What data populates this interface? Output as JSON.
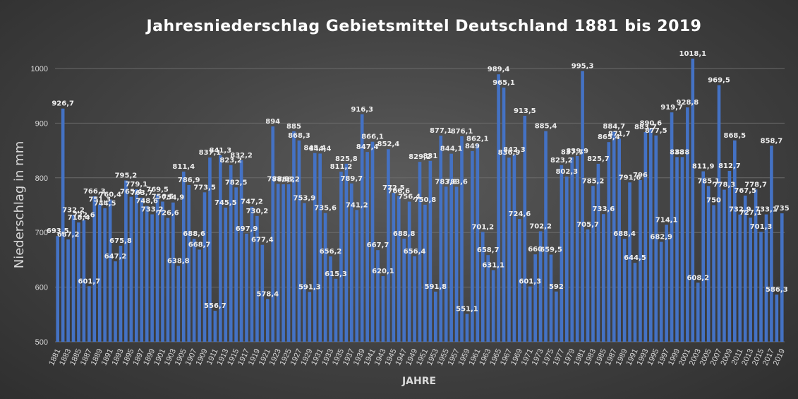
{
  "chart_data": {
    "type": "bar",
    "title": "Jahresniederschlag Gebietsmittel Deutschland 1881 bis 2019",
    "xlabel": "JAHRE",
    "ylabel": "Niederschlag in mm",
    "ylim": [
      500,
      1050
    ],
    "yticks": [
      500,
      600,
      700,
      800,
      900,
      1000
    ],
    "grid": true,
    "legend": "none",
    "bar_color": "#4472c4",
    "categories": [
      1881,
      1882,
      1883,
      1884,
      1885,
      1886,
      1887,
      1888,
      1889,
      1890,
      1891,
      1892,
      1893,
      1894,
      1895,
      1896,
      1897,
      1898,
      1899,
      1900,
      1901,
      1902,
      1903,
      1904,
      1905,
      1906,
      1907,
      1908,
      1909,
      1910,
      1911,
      1912,
      1913,
      1914,
      1915,
      1916,
      1917,
      1918,
      1919,
      1920,
      1921,
      1922,
      1923,
      1924,
      1925,
      1926,
      1927,
      1928,
      1929,
      1930,
      1931,
      1932,
      1933,
      1934,
      1935,
      1936,
      1937,
      1938,
      1939,
      1940,
      1941,
      1942,
      1943,
      1944,
      1945,
      1946,
      1947,
      1948,
      1949,
      1950,
      1951,
      1952,
      1953,
      1954,
      1955,
      1956,
      1957,
      1958,
      1959,
      1960,
      1961,
      1962,
      1963,
      1964,
      1965,
      1966,
      1967,
      1968,
      1969,
      1970,
      1971,
      1972,
      1973,
      1974,
      1975,
      1976,
      1977,
      1978,
      1979,
      1980,
      1981,
      1982,
      1983,
      1984,
      1985,
      1986,
      1987,
      1988,
      1989,
      1990,
      1991,
      1992,
      1993,
      1994,
      1995,
      1996,
      1997,
      1998,
      1999,
      2000,
      2001,
      2002,
      2003,
      2004,
      2005,
      2006,
      2007,
      2008,
      2009,
      2010,
      2011,
      2012,
      2013,
      2014,
      2015,
      2016,
      2017,
      2018,
      2019
    ],
    "values": [
      693.5,
      926.7,
      687.2,
      732.2,
      718.4,
      722.6,
      601.7,
      766.3,
      751.3,
      744.5,
      760.4,
      647.2,
      675.8,
      795.2,
      765.4,
      779.1,
      763.7,
      748.6,
      733.2,
      769.5,
      756.5,
      726.6,
      754.9,
      638.8,
      811.4,
      786.9,
      688.6,
      668.7,
      773.5,
      837.1,
      556.7,
      841.3,
      745.5,
      823.2,
      782.5,
      832.2,
      697.9,
      747.2,
      730.2,
      677.4,
      578.4,
      894,
      788.9,
      788.2,
      788.2,
      885,
      868.3,
      753.9,
      591.3,
      845.4,
      844.4,
      735.6,
      656.2,
      615.3,
      811.2,
      825.8,
      789.7,
      741.2,
      916.3,
      847.4,
      866.1,
      667.7,
      620.1,
      852.4,
      772.5,
      766.6,
      688.8,
      756.4,
      656.4,
      829.2,
      750.8,
      831,
      591.8,
      877.1,
      783.8,
      844.1,
      783.6,
      876.1,
      551.1,
      849,
      862.1,
      701.2,
      658.7,
      631.1,
      989.4,
      965.1,
      836.9,
      842.3,
      724.6,
      913.5,
      601.3,
      660,
      702.2,
      885.4,
      659.5,
      592,
      823.2,
      802.3,
      837.7,
      839.9,
      995.3,
      705.7,
      785.2,
      825.7,
      733.6,
      865.4,
      884.7,
      871.7,
      688.4,
      791.6,
      644.5,
      796,
      883.7,
      890.6,
      877.5,
      682.9,
      714.1,
      919.7,
      838,
      838,
      928.8,
      1018.1,
      608.2,
      811.9,
      785.1,
      750,
      969.5,
      778.3,
      812.7,
      868.5,
      732.9,
      767.5,
      727.1,
      778.7,
      701.3,
      733.1,
      858.7,
      586.3,
      735
    ],
    "value_labels": [
      "693,5",
      "926,7",
      "687,2",
      "732,2",
      "718,4",
      "722,6",
      "601,7",
      "766,3",
      "751,3",
      "744,5",
      "760,4",
      "647,2",
      "675,8",
      "795,2",
      "765,4",
      "779,1",
      "763,7",
      "748,6",
      "733,2",
      "769,5",
      "756,5",
      "726,6",
      "754,9",
      "638,8",
      "811,4",
      "786,9",
      "688,6",
      "668,7",
      "773,5",
      "837,1",
      "556,7",
      "841,3",
      "745,5",
      "823,2",
      "782,5",
      "832,2",
      "697,9",
      "747,2",
      "730,2",
      "677,4",
      "578,4",
      "894",
      "788,9",
      "788,2",
      "788,2",
      "885",
      "868,3",
      "753,9",
      "591,3",
      "845,4",
      "844,4",
      "735,6",
      "656,2",
      "615,3",
      "811,2",
      "825,8",
      "789,7",
      "741,2",
      "916,3",
      "847,4",
      "866,1",
      "667,7",
      "620,1",
      "852,4",
      "772,5",
      "766,6",
      "688,8",
      "756,4",
      "656,4",
      "829,2",
      "750,8",
      "831",
      "591,8",
      "877,1",
      "783,8",
      "844,1",
      "783,6",
      "876,1",
      "551,1",
      "849",
      "862,1",
      "701,2",
      "658,7",
      "631,1",
      "989,4",
      "965,1",
      "836,9",
      "842,3",
      "724,6",
      "913,5",
      "601,3",
      "660",
      "702,2",
      "885,4",
      "659,5",
      "592",
      "823,2",
      "802,3",
      "837,7",
      "839,9",
      "995,3",
      "705,7",
      "785,2",
      "825,7",
      "733,6",
      "865,4",
      "884,7",
      "871,7",
      "688,4",
      "791,6",
      "644,5",
      "796",
      "883,7",
      "890,6",
      "877,5",
      "682,9",
      "714,1",
      "919,7",
      "838",
      "838",
      "928,8",
      "1018,1",
      "608,2",
      "811,9",
      "785,1",
      "750",
      "969,5",
      "778,3",
      "812,7",
      "868,5",
      "732,9",
      "767,5",
      "727,1",
      "778,7",
      "701,3",
      "733,1",
      "858,7",
      "586,3",
      "735"
    ]
  }
}
